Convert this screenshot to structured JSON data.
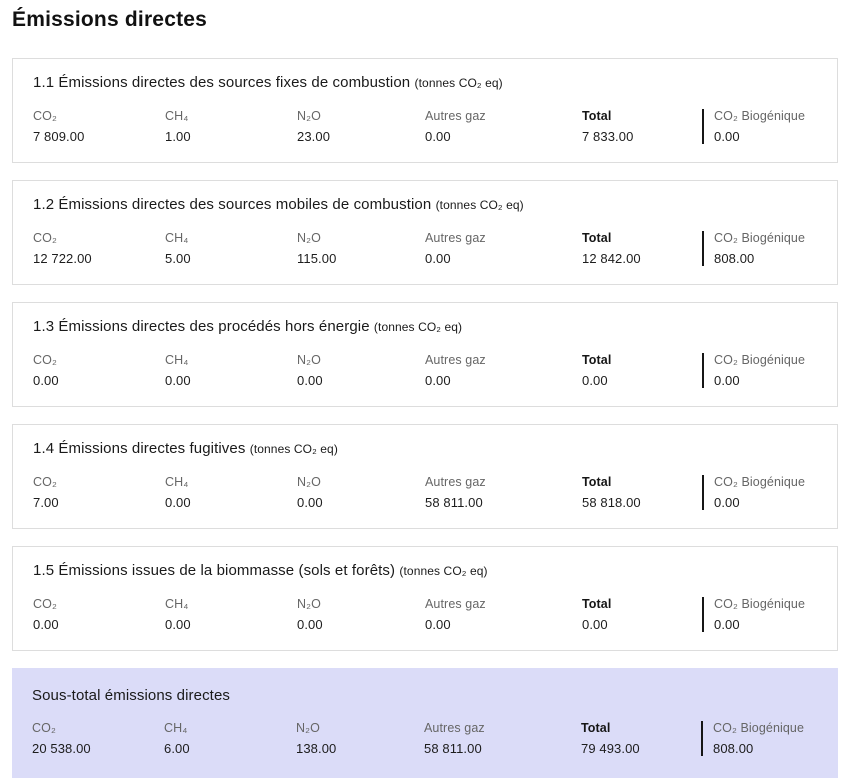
{
  "page": {
    "title": "Émissions directes"
  },
  "unit_label": "(tonnes CO₂ eq)",
  "columns": {
    "co2": "CO₂",
    "ch4": "CH₄",
    "n2o": "N₂O",
    "autres": "Autres gaz",
    "total": "Total",
    "biogenique": "CO₂ Biogénique"
  },
  "colors": {
    "subtotal_background": "#dbdcf8",
    "card_border": "#dddddd",
    "label_gray": "#666666",
    "text_dark": "#161616",
    "separator_bar": "#161616"
  },
  "sections": [
    {
      "title": "1.1 Émissions directes des sources fixes de combustion",
      "values": {
        "co2": "7 809.00",
        "ch4": "1.00",
        "n2o": "23.00",
        "autres": "0.00",
        "total": "7 833.00",
        "biogenique": "0.00"
      }
    },
    {
      "title": "1.2 Émissions directes des sources mobiles de combustion",
      "values": {
        "co2": "12 722.00",
        "ch4": "5.00",
        "n2o": "115.00",
        "autres": "0.00",
        "total": "12 842.00",
        "biogenique": "808.00"
      }
    },
    {
      "title": "1.3 Émissions directes des procédés hors énergie",
      "values": {
        "co2": "0.00",
        "ch4": "0.00",
        "n2o": "0.00",
        "autres": "0.00",
        "total": "0.00",
        "biogenique": "0.00"
      }
    },
    {
      "title": "1.4 Émissions directes fugitives",
      "values": {
        "co2": "7.00",
        "ch4": "0.00",
        "n2o": "0.00",
        "autres": "58 811.00",
        "total": "58 818.00",
        "biogenique": "0.00"
      }
    },
    {
      "title": "1.5 Émissions issues de la biommasse (sols et forêts)",
      "values": {
        "co2": "0.00",
        "ch4": "0.00",
        "n2o": "0.00",
        "autres": "0.00",
        "total": "0.00",
        "biogenique": "0.00"
      }
    }
  ],
  "subtotal": {
    "title": "Sous-total émissions directes",
    "values": {
      "co2": "20 538.00",
      "ch4": "6.00",
      "n2o": "138.00",
      "autres": "58 811.00",
      "total": "79 493.00",
      "biogenique": "808.00"
    }
  }
}
